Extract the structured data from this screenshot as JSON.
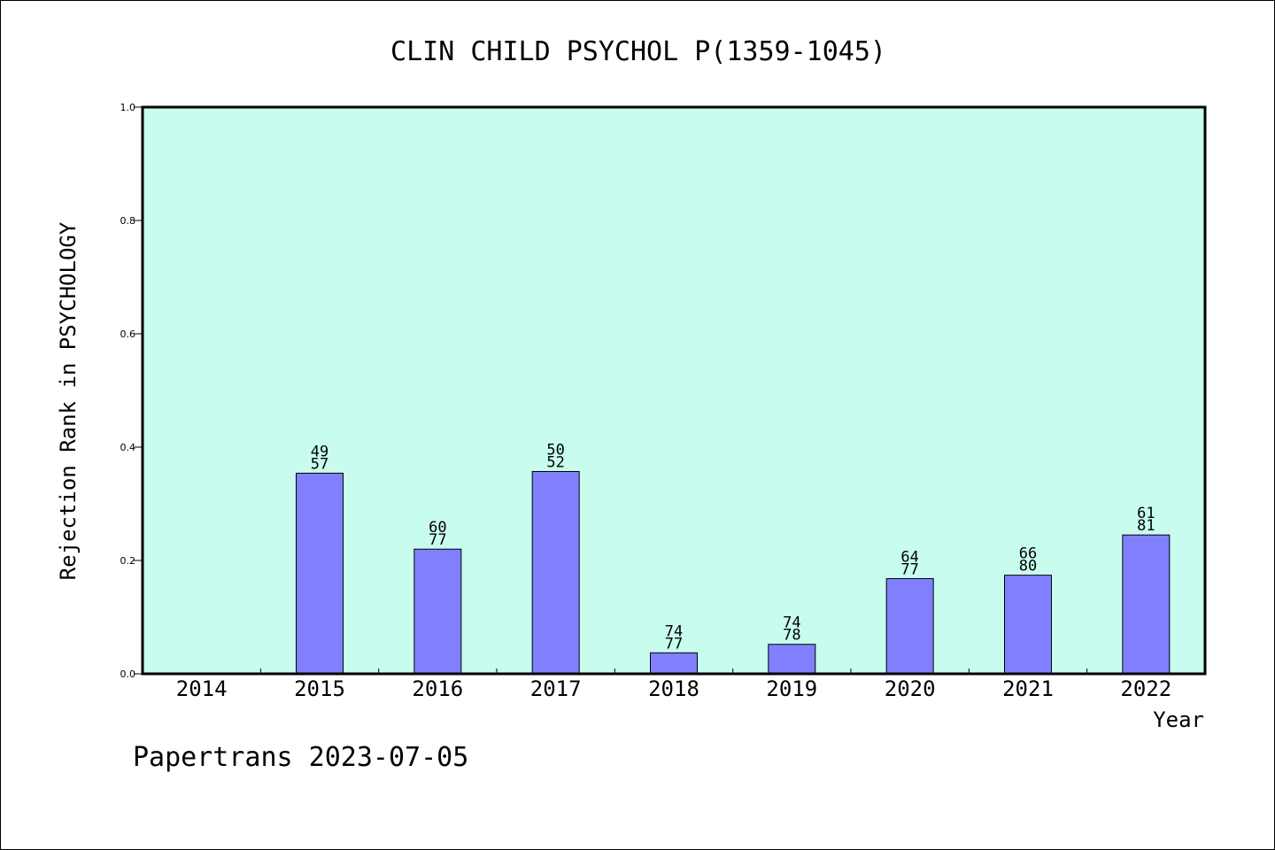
{
  "chart_data": {
    "type": "bar",
    "title": "CLIN CHILD PSYCHOL P(1359-1045)",
    "xlabel": "Year",
    "ylabel": "Rejection Rank in PSYCHOLOGY",
    "ylim": [
      0,
      1.0
    ],
    "yticks": [
      "0.0",
      "0.2",
      "0.4",
      "0.6",
      "0.8",
      "1.0"
    ],
    "categories": [
      "2014",
      "2015",
      "2016",
      "2017",
      "2018",
      "2019",
      "2020",
      "2021",
      "2022"
    ],
    "values": [
      null,
      0.354,
      0.22,
      0.357,
      0.037,
      0.052,
      0.168,
      0.174,
      0.245
    ],
    "labels_top": [
      "",
      "49",
      "60",
      "50",
      "74",
      "74",
      "64",
      "66",
      "61"
    ],
    "labels_bottom": [
      "",
      "57",
      "77",
      "52",
      "77",
      "78",
      "77",
      "80",
      "81"
    ],
    "grid": false,
    "colors": {
      "plot_bg": "#c8fcee",
      "bar_fill": "#8080ff",
      "bar_stroke": "#000000"
    }
  },
  "footer": "Papertrans 2023-07-05"
}
